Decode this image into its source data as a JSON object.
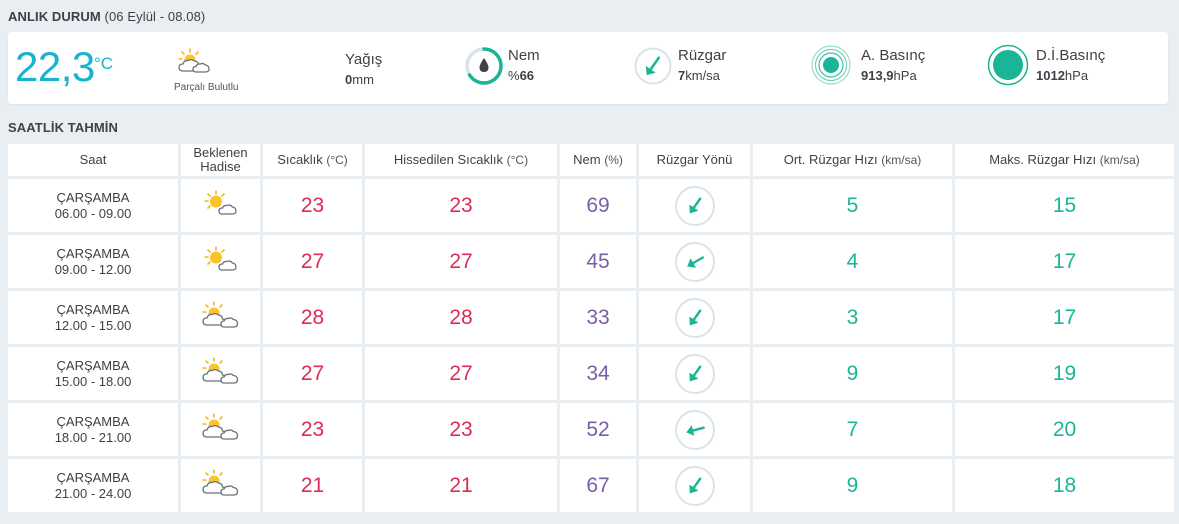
{
  "now": {
    "title": "ANLIK DURUM",
    "subtitle": "(06 Eylül - 08.08)",
    "temperature": "22,3",
    "temperature_unit": "°C",
    "condition": "Parçalı Bulutlu",
    "condition_icon": "partly-cloudy-icon",
    "precip": {
      "label": "Yağış",
      "value": "0",
      "unit": "mm"
    },
    "humidity": {
      "label": "Nem",
      "prefix": "%",
      "value": "66",
      "level_fraction": 0.66
    },
    "wind": {
      "label": "Rüzgar",
      "value": "7",
      "unit": "km/sa"
    },
    "pressure": {
      "label": "A. Basınç",
      "value": "913,9",
      "unit": "hPa"
    },
    "sea_pressure": {
      "label": "D.İ.Basınç",
      "value": "1012",
      "unit": "hPa"
    }
  },
  "hourly": {
    "title": "SAATLİK TAHMİN",
    "headers": {
      "time": "Saat",
      "event_line1": "Beklenen",
      "event_line2": "Hadise",
      "temp": "Sıcaklık",
      "temp_unit": "(°C)",
      "feels": "Hissedilen Sıcaklık",
      "feels_unit": "(°C)",
      "hum": "Nem",
      "hum_unit": "(%)",
      "wind_dir": "Rüzgar Yönü",
      "avg_wind": "Ort. Rüzgar Hızı",
      "avg_wind_unit": "(km/sa)",
      "max_wind": "Maks. Rüzgar Hızı",
      "max_wind_unit": "(km/sa)"
    },
    "rows": [
      {
        "day": "ÇARŞAMBA",
        "range": "06.00 - 09.00",
        "icon": "mostly-sunny-icon",
        "temp": "23",
        "feels": "23",
        "hum": "69",
        "wind_from_deg": 35,
        "avg": "5",
        "max": "15"
      },
      {
        "day": "ÇARŞAMBA",
        "range": "09.00 - 12.00",
        "icon": "mostly-sunny-icon",
        "temp": "27",
        "feels": "27",
        "hum": "45",
        "wind_from_deg": 60,
        "avg": "4",
        "max": "17"
      },
      {
        "day": "ÇARŞAMBA",
        "range": "12.00 - 15.00",
        "icon": "partly-cloudy-icon",
        "temp": "28",
        "feels": "28",
        "hum": "33",
        "wind_from_deg": 35,
        "avg": "3",
        "max": "17"
      },
      {
        "day": "ÇARŞAMBA",
        "range": "15.00 - 18.00",
        "icon": "partly-cloudy-icon",
        "temp": "27",
        "feels": "27",
        "hum": "34",
        "wind_from_deg": 35,
        "avg": "9",
        "max": "19"
      },
      {
        "day": "ÇARŞAMBA",
        "range": "18.00 - 21.00",
        "icon": "partly-cloudy-icon",
        "temp": "23",
        "feels": "23",
        "hum": "52",
        "wind_from_deg": 75,
        "avg": "7",
        "max": "20"
      },
      {
        "day": "ÇARŞAMBA",
        "range": "21.00 - 24.00",
        "icon": "partly-cloudy-icon",
        "temp": "21",
        "feels": "21",
        "hum": "67",
        "wind_from_deg": 35,
        "avg": "9",
        "max": "18"
      }
    ]
  },
  "colors": {
    "temp_accent": "#1ab3ce",
    "temp_value": "#dc2c55",
    "humidity_value": "#7b5fa6",
    "wind_value": "#1ab596",
    "teal": "#1ab596"
  }
}
